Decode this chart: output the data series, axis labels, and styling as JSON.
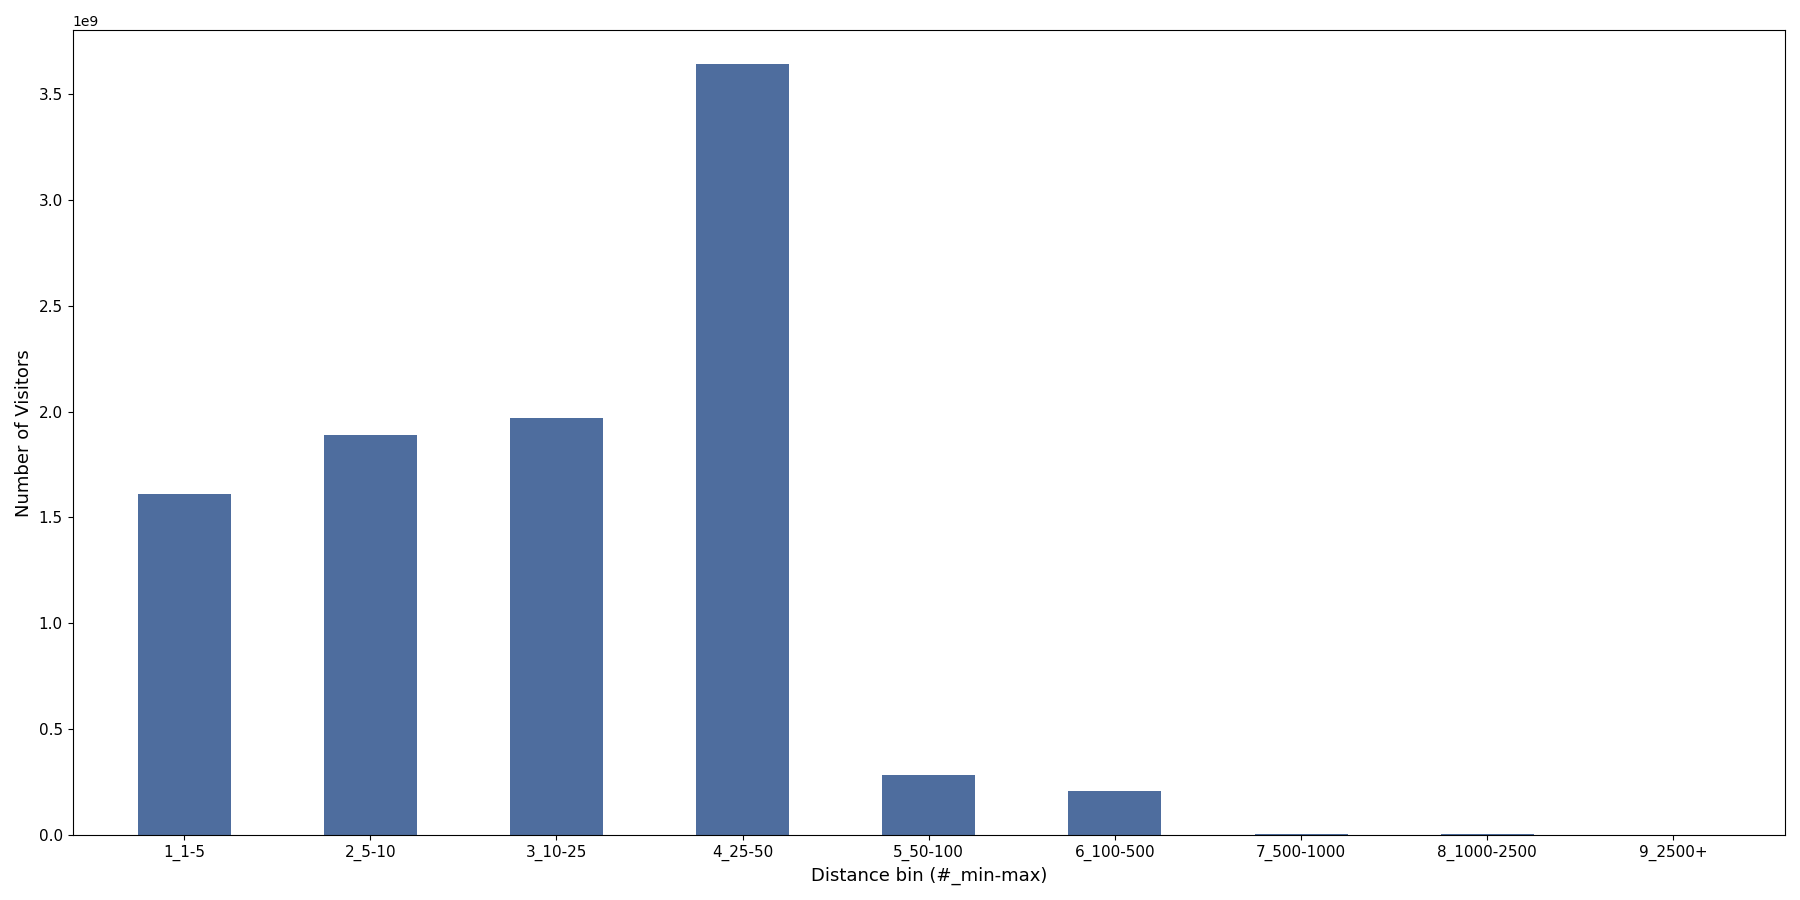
{
  "categories": [
    "1_1-5",
    "2_5-10",
    "3_10-25",
    "4_25-50",
    "5_50-100",
    "6_100-500",
    "7_500-1000",
    "8_1000-2500",
    "9_2500+"
  ],
  "values": [
    1610000000,
    1890000000,
    1970000000,
    3640000000,
    285000000,
    210000000,
    8000000,
    5000000,
    2000000
  ],
  "bar_color": "#4e6d9e",
  "xlabel": "Distance bin (#_min-max)",
  "ylabel": "Number of Visitors",
  "figsize": [
    18.0,
    9.0
  ],
  "dpi": 100,
  "ylim": [
    0,
    3800000000.0
  ],
  "bar_width": 0.5
}
